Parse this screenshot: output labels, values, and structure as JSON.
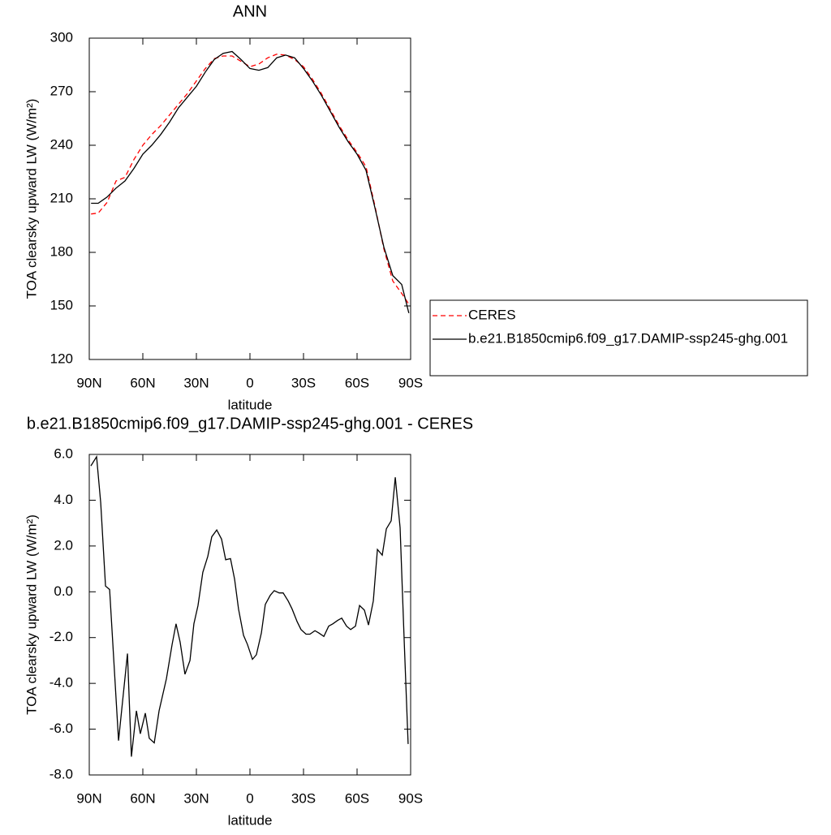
{
  "chart_data": [
    {
      "type": "line",
      "title": "ANN",
      "xlabel": "latitude",
      "ylabel": "TOA clearsky upward LW (W/m²)",
      "x": [
        89,
        85,
        80,
        75,
        70,
        65,
        60,
        55,
        50,
        45,
        40,
        35,
        30,
        25,
        20,
        15,
        10,
        5,
        0,
        -5,
        -10,
        -15,
        -20,
        -25,
        -30,
        -35,
        -40,
        -45,
        -50,
        -55,
        -60,
        -65,
        -70,
        -75,
        -80,
        -85,
        -89
      ],
      "series": [
        {
          "name": "CERES",
          "color": "#ff0000",
          "style": "dashed",
          "values": [
            201.5,
            202,
            208,
            220,
            222,
            232,
            240,
            246,
            251,
            257,
            263,
            269,
            276,
            283,
            288.5,
            290,
            290,
            287,
            284,
            285.5,
            289,
            291,
            290.5,
            288,
            284,
            277,
            269,
            260,
            251,
            243,
            236,
            228,
            206,
            182,
            164,
            157,
            151
          ]
        },
        {
          "name": "b.e21.B1850cmip6.f09_g17.DAMIP-ssp245-ghg.001",
          "color": "#000000",
          "style": "solid",
          "values": [
            207.5,
            207.5,
            211,
            216,
            220,
            227,
            235,
            240,
            246,
            253,
            261,
            267,
            273,
            281,
            288,
            291.5,
            292.5,
            288,
            283,
            282,
            283.5,
            289,
            290.5,
            289,
            283,
            276,
            268,
            259,
            250,
            242,
            235,
            226,
            205,
            183,
            167,
            162,
            146
          ]
        }
      ],
      "xlim": [
        90,
        -90
      ],
      "xticks": [
        {
          "value": 90,
          "label": "90N"
        },
        {
          "value": 60,
          "label": "60N"
        },
        {
          "value": 30,
          "label": "30N"
        },
        0,
        {
          "value": -30,
          "label": "30S"
        },
        {
          "value": -60,
          "label": "60S"
        },
        {
          "value": -90,
          "label": "90S"
        }
      ],
      "ylim": [
        120,
        300
      ],
      "yticks": [
        120,
        150,
        180,
        210,
        240,
        270,
        300
      ],
      "legend": "right"
    },
    {
      "type": "line",
      "title": "b.e21.B1850cmip6.f09_g17.DAMIP-ssp245-ghg.001 - CERES",
      "xlabel": "latitude",
      "ylabel": "TOA clearsky upward LW (W/m²)",
      "x": [
        89.1,
        85.9,
        83.6,
        80.9,
        78.6,
        73.6,
        68.6,
        66.4,
        63.6,
        61.4,
        58.6,
        56.4,
        53.6,
        50.9,
        46.8,
        43.6,
        41.4,
        39.1,
        36.4,
        33.6,
        31.4,
        29.1,
        26.4,
        23.6,
        21.4,
        18.6,
        15.9,
        13.6,
        10.9,
        8.6,
        6.4,
        3.6,
        1.4,
        -1.4,
        -3.6,
        -6.4,
        -8.6,
        -11.4,
        -13.6,
        -16.4,
        -18.6,
        -21.4,
        -23.6,
        -26.4,
        -28.6,
        -31.4,
        -33.6,
        -36.4,
        -38.6,
        -41.4,
        -44.1,
        -46.4,
        -49.1,
        -51.4,
        -54.1,
        -56.4,
        -59.1,
        -61.4,
        -64.1,
        -66.4,
        -69.1,
        -71.4,
        -74.1,
        -76.4,
        -79.1,
        -81.4,
        -84.1,
        -86.4,
        -88.6
      ],
      "series": [
        {
          "color": "#000000",
          "style": "solid",
          "values": [
            5.5,
            5.9,
            3.9,
            0.25,
            0.1,
            -6.5,
            -2.7,
            -7.2,
            -5.2,
            -6.2,
            -5.3,
            -6.4,
            -6.6,
            -5.2,
            -3.8,
            -2.3,
            -1.4,
            -2.2,
            -3.6,
            -3.0,
            -1.4,
            -0.6,
            0.85,
            1.55,
            2.4,
            2.7,
            2.3,
            1.4,
            1.45,
            0.55,
            -0.75,
            -1.9,
            -2.3,
            -2.95,
            -2.75,
            -1.8,
            -0.55,
            -0.15,
            0.05,
            -0.05,
            -0.05,
            -0.4,
            -0.75,
            -1.3,
            -1.65,
            -1.85,
            -1.85,
            -1.7,
            -1.8,
            -1.95,
            -1.5,
            -1.4,
            -1.25,
            -1.15,
            -1.5,
            -1.65,
            -1.5,
            -0.6,
            -0.8,
            -1.45,
            -0.4,
            1.85,
            1.6,
            2.75,
            3.1,
            5.0,
            2.8,
            -2.15,
            -6.65
          ]
        }
      ],
      "xlim": [
        90,
        -90
      ],
      "xticks": [
        {
          "value": 90,
          "label": "90N"
        },
        {
          "value": 60,
          "label": "60N"
        },
        {
          "value": 30,
          "label": "30N"
        },
        0,
        {
          "value": -30,
          "label": "30S"
        },
        {
          "value": -60,
          "label": "60S"
        },
        {
          "value": -90,
          "label": "90S"
        }
      ],
      "ylim": [
        -8,
        6
      ],
      "yticks": [
        {
          "value": -8,
          "label": "-8.0"
        },
        {
          "value": -6,
          "label": "-6.0"
        },
        {
          "value": -4,
          "label": "-4.0"
        },
        {
          "value": -2,
          "label": "-2.0"
        },
        {
          "value": 0,
          "label": "0.0"
        },
        {
          "value": 2,
          "label": "2.0"
        },
        {
          "value": 4,
          "label": "4.0"
        },
        {
          "value": 6,
          "label": "6.0"
        }
      ]
    }
  ]
}
